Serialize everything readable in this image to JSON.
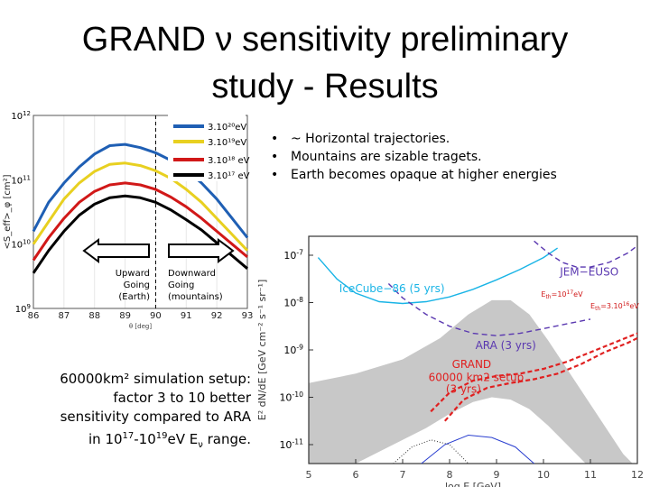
{
  "title": {
    "line1": "GRAND ν sensitivity preliminary",
    "line2": "study - Results"
  },
  "bullets": [
    "~ Horizontal trajectories.",
    "Mountains are sizable tragets.",
    "Earth becomes opaque at higher energies"
  ],
  "note": {
    "line1": "60000km² simulation setup:",
    "line2": "factor 3 to 10  better",
    "line3": "sensitivity compared to ARA",
    "line4a": "in 10",
    "line4b": "17",
    "line4c": "-10",
    "line4d": "19",
    "line4e": "eV E",
    "line4f": "ν",
    "line4g": " range."
  },
  "colors": {
    "blue": "#1f5fb4",
    "yellow": "#e8d020",
    "red": "#d11818",
    "black": "#000000",
    "cyan": "#19b4e6",
    "purple": "#5a38b0",
    "grand_red": "#e02020",
    "grey_band": "#c8c8c8"
  },
  "chart_data": [
    {
      "type": "line",
      "xlabel": "θ [deg]",
      "ylabel": "<S_eff>_φ [cm²]",
      "x_ticks": [
        "86",
        "87",
        "88",
        "89",
        "90",
        "91",
        "92",
        "93"
      ],
      "y_ticks": [
        {
          "base": "10",
          "exp": "9"
        },
        {
          "base": "10",
          "exp": "10"
        },
        {
          "base": "10",
          "exp": "11"
        },
        {
          "base": "10",
          "exp": "12"
        }
      ],
      "xlim": [
        86,
        93
      ],
      "ylog_lim": [
        9,
        12
      ],
      "legend": [
        {
          "label": "3.10²⁰eV",
          "color_key": "blue"
        },
        {
          "label": "3.10¹⁹eV",
          "color_key": "yellow"
        },
        {
          "label": "3.10¹⁸ eV",
          "color_key": "red"
        },
        {
          "label": "3.10¹⁷ eV",
          "color_key": "black"
        }
      ],
      "legend_position": "top-right",
      "series": [
        {
          "color_key": "blue",
          "x": [
            86.0,
            86.5,
            87.0,
            87.5,
            88.0,
            88.5,
            89.0,
            89.5,
            90.0,
            90.5,
            91.0,
            91.5,
            92.0,
            92.5,
            93.0
          ],
          "log10y": [
            10.2,
            10.65,
            10.95,
            11.2,
            11.4,
            11.53,
            11.55,
            11.5,
            11.42,
            11.3,
            11.15,
            10.95,
            10.7,
            10.4,
            10.1
          ]
        },
        {
          "color_key": "yellow",
          "x": [
            86.0,
            86.5,
            87.0,
            87.5,
            88.0,
            88.5,
            89.0,
            89.5,
            90.0,
            90.5,
            91.0,
            91.5,
            92.0,
            92.5,
            93.0
          ],
          "log10y": [
            10.0,
            10.35,
            10.7,
            10.95,
            11.13,
            11.24,
            11.26,
            11.22,
            11.14,
            11.02,
            10.85,
            10.65,
            10.4,
            10.15,
            9.9
          ]
        },
        {
          "color_key": "red",
          "x": [
            86.0,
            86.5,
            87.0,
            87.5,
            88.0,
            88.5,
            89.0,
            89.5,
            90.0,
            90.5,
            91.0,
            91.5,
            92.0,
            92.5,
            93.0
          ],
          "log10y": [
            9.75,
            10.1,
            10.4,
            10.65,
            10.82,
            10.92,
            10.95,
            10.92,
            10.85,
            10.73,
            10.58,
            10.4,
            10.2,
            10.0,
            9.8
          ]
        },
        {
          "color_key": "black",
          "x": [
            86.0,
            86.5,
            87.0,
            87.5,
            88.0,
            88.5,
            89.0,
            89.5,
            90.0,
            90.5,
            91.0,
            91.5,
            92.0,
            92.5,
            93.0
          ],
          "log10y": [
            9.55,
            9.9,
            10.2,
            10.45,
            10.62,
            10.72,
            10.75,
            10.72,
            10.65,
            10.53,
            10.38,
            10.22,
            10.02,
            9.82,
            9.62
          ]
        }
      ],
      "divider_x": 90,
      "annotations": {
        "left": [
          "Upward",
          "Going",
          "(Earth)"
        ],
        "right": [
          "Downward",
          "Going",
          "(mountains)"
        ]
      }
    },
    {
      "type": "line",
      "xlabel": "log E [GeV]",
      "ylabel": "E² dN/dE [GeV cm⁻² s⁻¹ sr⁻¹]",
      "x_ticks": [
        "5",
        "6",
        "7",
        "8",
        "9",
        "10",
        "11",
        "12"
      ],
      "y_ticks": [
        {
          "base": "10",
          "exp": "-7"
        },
        {
          "base": "10",
          "exp": "-8"
        },
        {
          "base": "10",
          "exp": "-9"
        },
        {
          "base": "10",
          "exp": "-10"
        },
        {
          "base": "10",
          "exp": "-11"
        }
      ],
      "xlim": [
        5,
        12
      ],
      "ylog_lim": [
        -11.4,
        -6.6
      ],
      "labels": {
        "jem": "JEM−EUSO",
        "icecube": "IceCube−86  (5 yrs)",
        "ara": "ARA  (3 yrs)",
        "grand1": "GRAND",
        "grand2": "60000  km2  setup",
        "grand3": "(3 yrs)",
        "eth1_a": "E",
        "eth1_b": "th",
        "eth1_c": "=10",
        "eth1_d": "17",
        "eth1_e": "eV",
        "eth2_a": "E",
        "eth2_b": "th",
        "eth2_c": "=3.10",
        "eth2_d": "16",
        "eth2_e": "eV"
      },
      "series": [
        {
          "name_key": "icecube",
          "color_key": "cyan",
          "x": [
            5.2,
            5.6,
            6.0,
            6.5,
            7.0,
            7.5,
            8.0,
            8.5,
            9.0,
            9.5,
            10.0,
            10.3
          ],
          "log10y": [
            -7.05,
            -7.5,
            -7.8,
            -7.98,
            -8.02,
            -7.98,
            -7.88,
            -7.72,
            -7.52,
            -7.3,
            -7.05,
            -6.85
          ]
        },
        {
          "name_key": "jem",
          "color_key": "purple",
          "dashed": true,
          "x": [
            9.8,
            10.1,
            10.4,
            10.7,
            11.0,
            11.4,
            11.8,
            12.0
          ],
          "log10y": [
            -6.7,
            -6.95,
            -7.15,
            -7.25,
            -7.25,
            -7.15,
            -6.95,
            -6.8
          ]
        },
        {
          "name_key": "ara",
          "color_key": "purple",
          "dashed": true,
          "x": [
            6.7,
            7.0,
            7.5,
            8.0,
            8.5,
            9.0,
            9.5,
            10.0,
            10.5,
            11.0
          ],
          "log10y": [
            -7.6,
            -7.9,
            -8.25,
            -8.5,
            -8.65,
            -8.7,
            -8.65,
            -8.55,
            -8.45,
            -8.35
          ]
        },
        {
          "name_key": "grand2",
          "color_key": "grand_red",
          "dashed": true,
          "x": [
            7.6,
            8.0,
            8.5,
            9.0,
            9.5,
            10.0,
            10.5,
            11.0,
            11.5,
            12.0
          ],
          "log10y": [
            -10.3,
            -9.9,
            -9.65,
            -9.55,
            -9.5,
            -9.4,
            -9.25,
            -9.05,
            -8.85,
            -8.65
          ]
        },
        {
          "name_key": "grand1",
          "color_key": "grand_red",
          "dashed": true,
          "x": [
            7.9,
            8.3,
            8.8,
            9.3,
            9.8,
            10.3,
            10.8,
            11.3,
            11.8,
            12.0
          ],
          "log10y": [
            -10.5,
            -10.05,
            -9.8,
            -9.7,
            -9.62,
            -9.5,
            -9.3,
            -9.05,
            -8.85,
            -8.75
          ]
        }
      ]
    }
  ]
}
